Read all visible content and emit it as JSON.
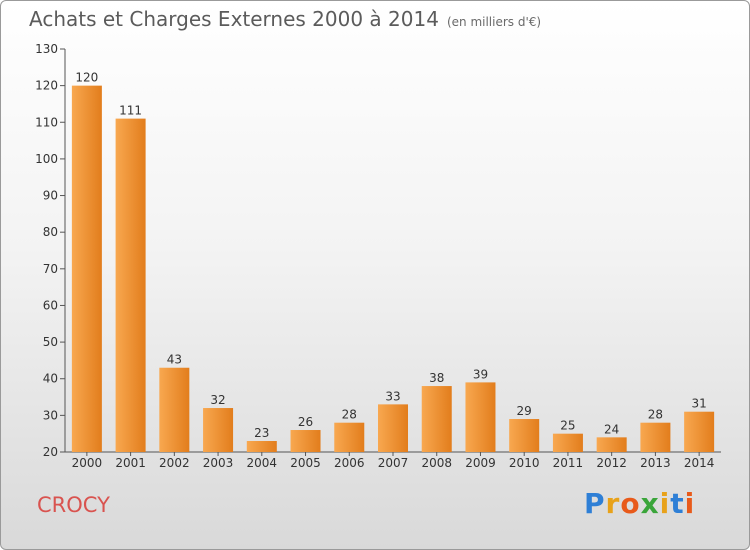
{
  "header": {
    "title": "Achats et Charges Externes 2000 à 2014",
    "unit": "(en milliers d'€)"
  },
  "footer": {
    "commune": "CROCY",
    "logo": "Proxiti"
  },
  "colors": {
    "bar_light": "#f7a24a",
    "bar_dark": "#e07b1a",
    "commune": "#d9534f"
  },
  "chart_data": {
    "type": "bar",
    "title": "Achats et Charges Externes 2000 à 2014",
    "subtitle": "(en milliers d'€)",
    "xlabel": "",
    "ylabel": "",
    "categories": [
      "2000",
      "2001",
      "2002",
      "2003",
      "2004",
      "2005",
      "2006",
      "2007",
      "2008",
      "2009",
      "2010",
      "2011",
      "2012",
      "2013",
      "2014"
    ],
    "values": [
      120,
      111,
      43,
      32,
      23,
      26,
      28,
      33,
      38,
      39,
      29,
      25,
      24,
      28,
      31
    ],
    "ylim": [
      20,
      130
    ],
    "yticks": [
      20,
      30,
      40,
      50,
      60,
      70,
      80,
      90,
      100,
      110,
      120,
      130
    ],
    "grid": false,
    "legend": "none"
  }
}
